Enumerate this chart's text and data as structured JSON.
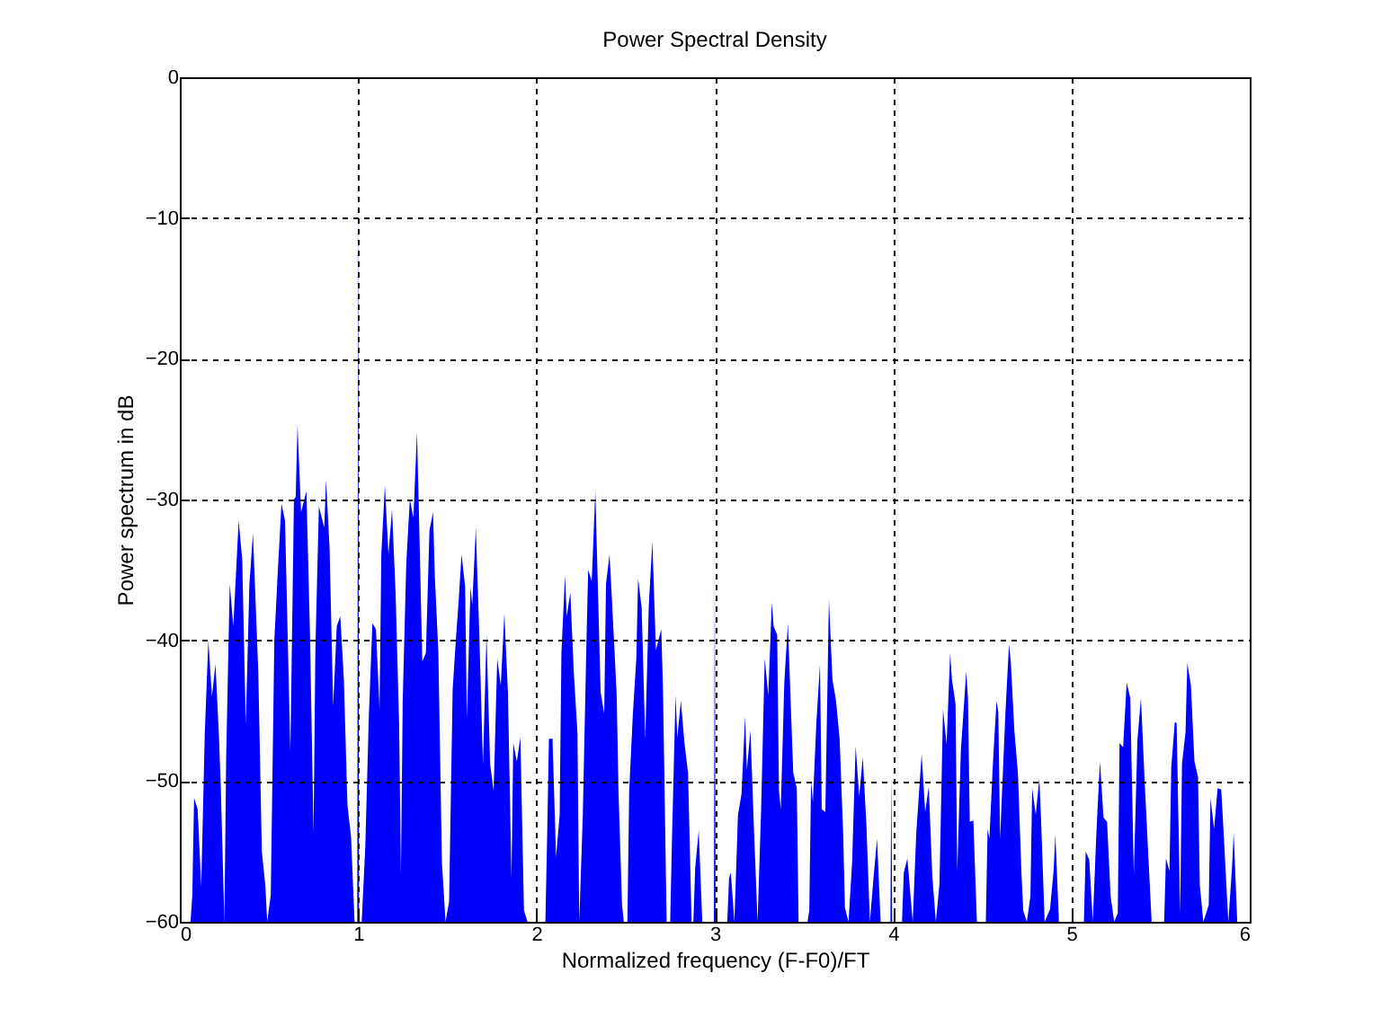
{
  "chart_data": {
    "type": "area",
    "title": "Power Spectral Density",
    "xlabel": "Normalized frequency (F-F0)/FT",
    "ylabel": "Power spectrum in dB",
    "xlim": [
      0,
      6
    ],
    "ylim": [
      -60,
      0
    ],
    "xticks": [
      0,
      1,
      2,
      3,
      4,
      5,
      6
    ],
    "yticks": [
      -60,
      -50,
      -40,
      -30,
      -20,
      -10,
      0
    ],
    "grid": true,
    "series": [
      {
        "color": "#0000ff",
        "x": [
          0.06,
          0.07,
          0.08,
          0.1,
          0.12,
          0.14,
          0.16,
          0.18,
          0.2,
          0.22,
          0.23,
          0.25,
          0.26,
          0.28,
          0.3,
          0.33,
          0.35,
          0.37,
          0.39,
          0.41,
          0.44,
          0.46,
          0.48,
          0.49,
          0.51,
          0.53,
          0.55,
          0.57,
          0.59,
          0.62,
          0.64,
          0.65,
          0.66,
          0.68,
          0.71,
          0.73,
          0.75,
          0.76,
          0.78,
          0.81,
          0.82,
          0.84,
          0.86,
          0.88,
          0.9,
          0.92,
          0.94,
          0.96,
          0.98,
          0.995,
          1.0,
          1.005,
          1.02,
          1.04,
          1.06,
          1.08,
          1.1,
          1.12,
          1.13,
          1.15,
          1.17,
          1.19,
          1.21,
          1.23,
          1.24,
          1.25,
          1.27,
          1.29,
          1.31,
          1.33,
          1.34,
          1.36,
          1.38,
          1.4,
          1.42,
          1.43,
          1.45,
          1.47,
          1.49,
          1.51,
          1.53,
          1.55,
          1.56,
          1.58,
          1.6,
          1.61,
          1.63,
          1.64,
          1.66,
          1.68,
          1.7,
          1.72,
          1.74,
          1.76,
          1.78,
          1.8,
          1.82,
          1.84,
          1.86,
          1.87,
          1.89,
          1.91,
          1.93,
          1.95,
          2.05,
          2.06,
          2.07,
          2.09,
          2.11,
          2.13,
          2.14,
          2.16,
          2.17,
          2.19,
          2.21,
          2.23,
          2.24,
          2.26,
          2.28,
          2.29,
          2.31,
          2.33,
          2.34,
          2.36,
          2.38,
          2.39,
          2.41,
          2.43,
          2.45,
          2.46,
          2.48,
          2.49,
          2.51,
          2.52,
          2.54,
          2.56,
          2.57,
          2.59,
          2.61,
          2.63,
          2.65,
          2.67,
          2.7,
          2.71,
          2.73,
          2.75,
          2.76,
          2.78,
          2.79,
          2.81,
          2.83,
          2.85,
          2.87,
          2.88,
          2.89,
          2.91,
          2.93,
          2.995,
          3.0,
          3.005,
          3.07,
          3.08,
          3.09,
          3.11,
          3.13,
          3.15,
          3.17,
          3.18,
          3.2,
          3.22,
          3.24,
          3.26,
          3.28,
          3.3,
          3.32,
          3.33,
          3.35,
          3.36,
          3.37,
          3.39,
          3.41,
          3.42,
          3.44,
          3.46,
          3.47,
          3.52,
          3.53,
          3.54,
          3.55,
          3.57,
          3.59,
          3.6,
          3.62,
          3.64,
          3.66,
          3.68,
          3.7,
          3.72,
          3.73,
          3.75,
          3.77,
          3.79,
          3.81,
          3.83,
          3.85,
          3.87,
          3.89,
          3.91,
          3.93,
          3.985,
          3.99,
          3.995,
          4.05,
          4.06,
          4.08,
          4.11,
          4.13,
          4.16,
          4.18,
          4.2,
          4.22,
          4.24,
          4.26,
          4.28,
          4.3,
          4.32,
          4.33,
          4.35,
          4.36,
          4.38,
          4.39,
          4.41,
          4.42,
          4.43,
          4.45,
          4.47,
          4.52,
          4.53,
          4.54,
          4.56,
          4.58,
          4.59,
          4.6,
          4.63,
          4.65,
          4.66,
          4.68,
          4.7,
          4.72,
          4.73,
          4.75,
          4.77,
          4.78,
          4.8,
          4.82,
          4.83,
          4.85,
          4.88,
          4.9,
          4.91,
          4.93,
          5.07,
          5.08,
          5.1,
          5.12,
          5.14,
          5.16,
          5.18,
          5.2,
          5.22,
          5.24,
          5.26,
          5.27,
          5.29,
          5.31,
          5.33,
          5.35,
          5.37,
          5.39,
          5.41,
          5.43,
          5.45,
          5.52,
          5.53,
          5.55,
          5.56,
          5.58,
          5.59,
          5.61,
          5.62,
          5.64,
          5.65,
          5.67,
          5.69,
          5.71,
          5.72,
          5.74,
          5.77,
          5.78,
          5.8,
          5.82,
          5.84,
          5.85,
          5.88,
          5.9,
          5.91,
          5.93
        ],
        "values": [
          -60,
          -58.1,
          -51.2,
          -52,
          -57.5,
          -46.6,
          -40,
          -44,
          -41.7,
          -47,
          -50.5,
          -60,
          -48.3,
          -36,
          -39,
          -31.5,
          -34.3,
          -46,
          -36.1,
          -32.4,
          -42.2,
          -55,
          -57.5,
          -60,
          -58.1,
          -40,
          -35,
          -30.3,
          -31.5,
          -47.9,
          -30,
          -29.8,
          -24.7,
          -30.9,
          -29.4,
          -39.6,
          -53.7,
          -40.7,
          -30.5,
          -32,
          -28.6,
          -33.5,
          -44.7,
          -39,
          -38.3,
          -42.8,
          -51.7,
          -53.9,
          -60,
          -60,
          -7.7,
          -60,
          -60,
          -54.7,
          -45.4,
          -38.8,
          -39.2,
          -44.9,
          -33.9,
          -29,
          -33.9,
          -30.7,
          -36.6,
          -46,
          -56.6,
          -44.3,
          -34.5,
          -30,
          -31.3,
          -25.2,
          -30.5,
          -41.5,
          -40.9,
          -32.2,
          -30.9,
          -35.4,
          -40.9,
          -55.8,
          -60,
          -58.6,
          -43.5,
          -39.6,
          -37.9,
          -33.9,
          -36.2,
          -45.6,
          -36.2,
          -37.5,
          -32,
          -39.8,
          -48.8,
          -39.6,
          -48.8,
          -50.7,
          -41.3,
          -43.2,
          -38.1,
          -43.7,
          -56.9,
          -47.3,
          -48.6,
          -46.9,
          -59.2,
          -60,
          -60,
          -53.9,
          -47,
          -47,
          -55.4,
          -52.4,
          -40.9,
          -35.4,
          -38.3,
          -36.6,
          -42.4,
          -46.6,
          -60,
          -52.4,
          -40.3,
          -35,
          -35.8,
          -29.4,
          -34.1,
          -43.7,
          -45.2,
          -36,
          -33.9,
          -38.8,
          -43.9,
          -50.7,
          -58.8,
          -60,
          -60,
          -50.7,
          -45.4,
          -41.3,
          -35.6,
          -37.7,
          -47,
          -37.5,
          -33,
          -40.7,
          -39.2,
          -43.7,
          -60,
          -60,
          -54.1,
          -43.9,
          -46.9,
          -44.3,
          -47.3,
          -49.4,
          -60,
          -60,
          -56.2,
          -53.5,
          -60,
          -60,
          -34.7,
          -60,
          -60,
          -56.9,
          -56.5,
          -60,
          -52.4,
          -50.9,
          -45.4,
          -49.2,
          -46.4,
          -53.5,
          -60,
          -52,
          -41.3,
          -43.9,
          -37.3,
          -39,
          -39.6,
          -50.7,
          -52,
          -43,
          -38.8,
          -42.4,
          -49.4,
          -50.5,
          -60,
          -60,
          -59.2,
          -50,
          -51.5,
          -45.8,
          -41.7,
          -52,
          -52.2,
          -37.1,
          -42.8,
          -44.3,
          -47,
          -53.7,
          -59,
          -60,
          -55.8,
          -47.5,
          -51.1,
          -48.3,
          -53,
          -60,
          -56.9,
          -54.1,
          -60,
          -60,
          -49.6,
          -60,
          -60,
          -56.5,
          -55.5,
          -60,
          -53.7,
          -48.1,
          -52.2,
          -50.4,
          -56.8,
          -60,
          -57.3,
          -44.9,
          -47.4,
          -40.9,
          -42.8,
          -44.5,
          -56.4,
          -47.8,
          -46,
          -42.2,
          -44.1,
          -52.9,
          -52.8,
          -60,
          -60,
          -53.4,
          -54.1,
          -48.7,
          -44.3,
          -45.1,
          -54.1,
          -45.1,
          -40.3,
          -41.5,
          -46.4,
          -49.4,
          -56.6,
          -59.2,
          -60,
          -58.2,
          -50.5,
          -52.4,
          -49.8,
          -52.8,
          -60,
          -59.1,
          -56.4,
          -53.8,
          -60,
          -60,
          -55,
          -55.6,
          -60,
          -53.7,
          -48.6,
          -52.6,
          -52.9,
          -58.2,
          -60,
          -59.4,
          -47.3,
          -47.6,
          -43,
          -44.1,
          -56.6,
          -47.1,
          -44.1,
          -49.8,
          -55,
          -60,
          -60,
          -55.5,
          -56.4,
          -49,
          -45.8,
          -45.9,
          -59.4,
          -48.8,
          -46.5,
          -41.6,
          -43.2,
          -48.6,
          -49.7,
          -57.4,
          -60,
          -58.8,
          -51.2,
          -53.4,
          -50.5,
          -50.6,
          -52.8,
          -60,
          -56.3,
          -53.7,
          -60
        ]
      }
    ]
  }
}
